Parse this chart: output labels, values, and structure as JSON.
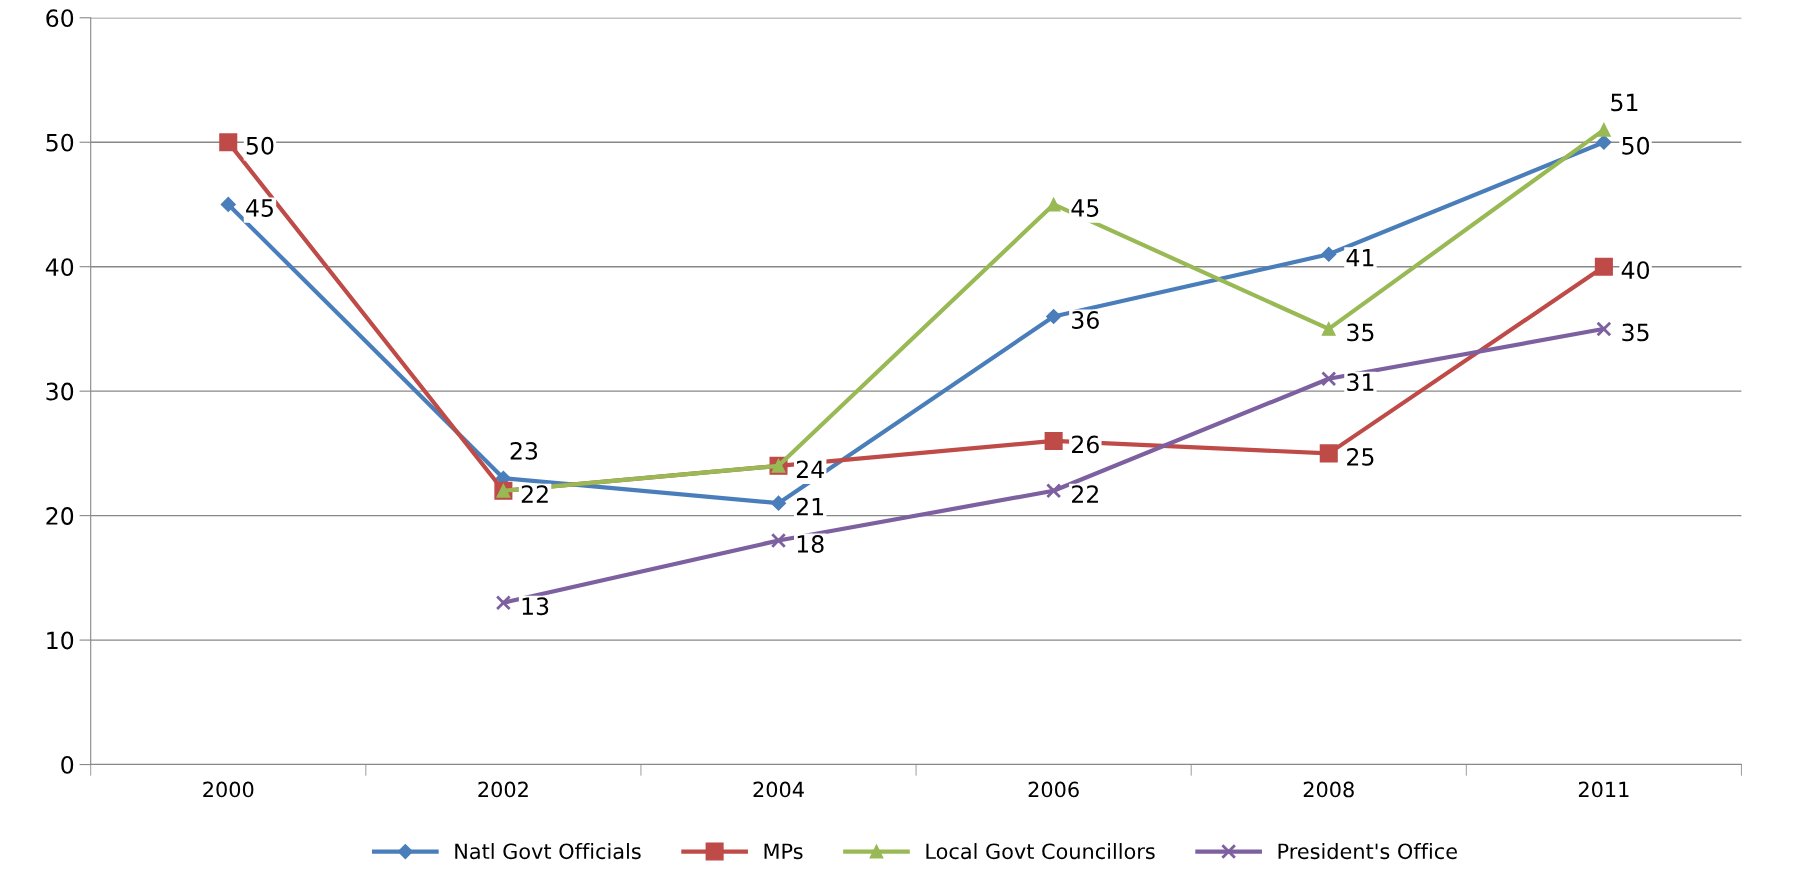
{
  "chart_data": {
    "type": "line",
    "categories": [
      "2000",
      "2002",
      "2004",
      "2006",
      "2008",
      "2011"
    ],
    "ylim": [
      0,
      60
    ],
    "yticks": [
      0,
      10,
      20,
      30,
      40,
      50,
      60
    ],
    "grid": "y",
    "legend": "bottom",
    "series": [
      {
        "name": "Natl Govt Officials",
        "color": "#4a7ebb",
        "marker": "diamond",
        "values": [
          45,
          23,
          21,
          36,
          41,
          50
        ],
        "value_labels": [
          "45",
          "23",
          "21",
          "36",
          "41",
          "50"
        ]
      },
      {
        "name": "MPs",
        "color": "#be4b48",
        "marker": "square",
        "values": [
          50,
          22,
          24,
          26,
          25,
          40
        ],
        "value_labels": [
          "50",
          null,
          "24",
          "26",
          "25",
          "40"
        ]
      },
      {
        "name": "Local Govt Councillors",
        "color": "#98b954",
        "marker": "triangle",
        "values": [
          null,
          22,
          24,
          45,
          35,
          51
        ],
        "value_labels": [
          null,
          "22",
          null,
          "45",
          "35",
          "51"
        ]
      },
      {
        "name": "President's Office",
        "color": "#7d60a0",
        "marker": "cross",
        "values": [
          null,
          13,
          18,
          22,
          31,
          35
        ],
        "value_labels": [
          null,
          "13",
          "18",
          "22",
          "31",
          "35"
        ]
      }
    ]
  }
}
